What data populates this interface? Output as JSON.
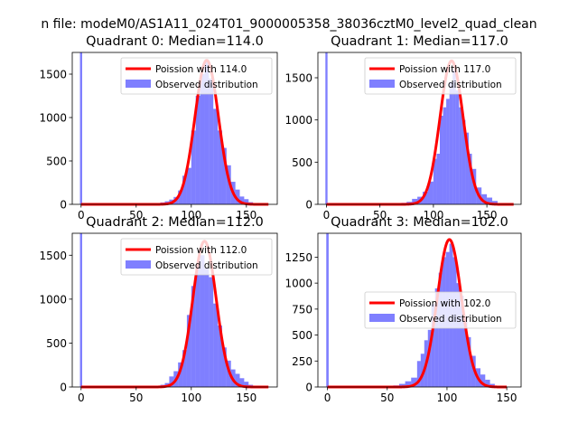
{
  "figure": {
    "suptitle": "n file: modeM0/AS1A11_024T01_9000005358_38036cztM0_level2_quad_clean"
  },
  "colors": {
    "hist": "#0000ff",
    "line": "#ff0000",
    "axis": "#000000",
    "background": "#ffffff"
  },
  "chart_data": [
    {
      "type": "bar",
      "title": "Quadrant 0: Median=114.0",
      "median": 114.0,
      "xlim": [
        -8,
        178
      ],
      "ylim": [
        0,
        1750
      ],
      "xticks": [
        0,
        50,
        100,
        150
      ],
      "yticks": [
        0,
        500,
        1000,
        1500
      ],
      "legend_position": "top-right",
      "series": [
        {
          "name": "Poission with 114.0",
          "kind": "line"
        },
        {
          "name": "Observed distribution",
          "kind": "histogram"
        }
      ],
      "spike": {
        "x": 0,
        "value": 1750
      },
      "bins": [
        [
          30,
          0,
          5
        ],
        [
          60,
          64,
          5
        ],
        [
          64,
          68,
          10
        ],
        [
          68,
          72,
          12
        ],
        [
          72,
          76,
          22
        ],
        [
          76,
          80,
          35
        ],
        [
          80,
          84,
          55
        ],
        [
          84,
          88,
          85
        ],
        [
          88,
          92,
          160
        ],
        [
          92,
          96,
          330
        ],
        [
          96,
          100,
          420
        ],
        [
          100,
          104,
          850
        ],
        [
          104,
          108,
          1250
        ],
        [
          108,
          112,
          1500
        ],
        [
          112,
          116,
          1650
        ],
        [
          116,
          120,
          1450
        ],
        [
          120,
          124,
          1100
        ],
        [
          124,
          128,
          850
        ],
        [
          128,
          132,
          650
        ],
        [
          132,
          136,
          450
        ],
        [
          136,
          140,
          260
        ],
        [
          140,
          144,
          170
        ],
        [
          144,
          148,
          90
        ],
        [
          148,
          152,
          60
        ],
        [
          152,
          156,
          25
        ],
        [
          156,
          160,
          10
        ],
        [
          160,
          170,
          5
        ]
      ],
      "curve": {
        "mean": 114.0,
        "sd": 10.68,
        "peak": 1660,
        "x_range": [
          0,
          170
        ]
      }
    },
    {
      "type": "bar",
      "title": "Quadrant 1: Median=117.0",
      "median": 117.0,
      "xlim": [
        -8,
        182
      ],
      "ylim": [
        0,
        1800
      ],
      "xticks": [
        0,
        50,
        100,
        150
      ],
      "yticks": [
        0,
        500,
        1000,
        1500
      ],
      "legend_position": "top-right",
      "series": [
        {
          "name": "Poission with 117.0",
          "kind": "line"
        },
        {
          "name": "Observed distribution",
          "kind": "histogram"
        }
      ],
      "spike": {
        "x": 0,
        "value": 1800
      },
      "bins": [
        [
          30,
          0,
          5
        ],
        [
          65,
          70,
          10
        ],
        [
          70,
          75,
          18
        ],
        [
          75,
          80,
          30
        ],
        [
          80,
          85,
          65
        ],
        [
          85,
          90,
          90
        ],
        [
          90,
          95,
          150
        ],
        [
          95,
          100,
          270
        ],
        [
          100,
          103,
          540
        ],
        [
          103,
          106,
          600
        ],
        [
          106,
          109,
          1050
        ],
        [
          109,
          112,
          1150
        ],
        [
          112,
          115,
          1250
        ],
        [
          115,
          118,
          1450
        ],
        [
          118,
          121,
          1600
        ],
        [
          121,
          124,
          1350
        ],
        [
          124,
          127,
          1150
        ],
        [
          127,
          130,
          1000
        ],
        [
          130,
          133,
          850
        ],
        [
          133,
          136,
          600
        ],
        [
          136,
          140,
          420
        ],
        [
          140,
          145,
          200
        ],
        [
          145,
          150,
          120
        ],
        [
          150,
          155,
          80
        ],
        [
          155,
          160,
          40
        ],
        [
          160,
          175,
          5
        ]
      ],
      "curve": {
        "mean": 117.0,
        "sd": 10.82,
        "peak": 1700,
        "x_range": [
          0,
          175
        ]
      }
    },
    {
      "type": "bar",
      "title": "Quadrant 2: Median=112.0",
      "median": 112.0,
      "xlim": [
        -8,
        178
      ],
      "ylim": [
        0,
        1750
      ],
      "xticks": [
        0,
        50,
        100,
        150
      ],
      "yticks": [
        0,
        500,
        1000,
        1500
      ],
      "legend_position": "top-right",
      "series": [
        {
          "name": "Poission with 112.0",
          "kind": "line"
        },
        {
          "name": "Observed distribution",
          "kind": "histogram"
        }
      ],
      "spike": {
        "x": 0,
        "value": 1750
      },
      "bins": [
        [
          30,
          0,
          5
        ],
        [
          60,
          64,
          5
        ],
        [
          64,
          68,
          10
        ],
        [
          68,
          72,
          15
        ],
        [
          72,
          76,
          25
        ],
        [
          76,
          80,
          45
        ],
        [
          80,
          84,
          120
        ],
        [
          84,
          88,
          180
        ],
        [
          88,
          92,
          280
        ],
        [
          92,
          96,
          420
        ],
        [
          96,
          100,
          820
        ],
        [
          100,
          104,
          1150
        ],
        [
          104,
          108,
          1400
        ],
        [
          108,
          112,
          1500
        ],
        [
          112,
          116,
          1350
        ],
        [
          116,
          120,
          1250
        ],
        [
          120,
          124,
          950
        ],
        [
          124,
          128,
          700
        ],
        [
          128,
          132,
          450
        ],
        [
          132,
          136,
          300
        ],
        [
          136,
          140,
          200
        ],
        [
          140,
          144,
          150
        ],
        [
          144,
          148,
          100
        ],
        [
          148,
          152,
          60
        ],
        [
          152,
          156,
          25
        ],
        [
          156,
          160,
          10
        ],
        [
          160,
          170,
          5
        ]
      ],
      "curve": {
        "mean": 112.0,
        "sd": 10.58,
        "peak": 1660,
        "x_range": [
          0,
          170
        ]
      }
    },
    {
      "type": "bar",
      "title": "Quadrant 3: Median=102.0",
      "median": 102.0,
      "xlim": [
        -8,
        162
      ],
      "ylim": [
        0,
        1480
      ],
      "xticks": [
        0,
        50,
        100,
        150
      ],
      "yticks": [
        0,
        250,
        500,
        750,
        1000,
        1250
      ],
      "legend_position": "center-right",
      "series": [
        {
          "name": "Poission with 102.0",
          "kind": "line"
        },
        {
          "name": "Observed distribution",
          "kind": "histogram"
        }
      ],
      "spike": {
        "x": 0,
        "value": 1480
      },
      "bins": [
        [
          30,
          0,
          5
        ],
        [
          45,
          50,
          5
        ],
        [
          50,
          55,
          10
        ],
        [
          55,
          60,
          15
        ],
        [
          60,
          65,
          30
        ],
        [
          65,
          70,
          55
        ],
        [
          70,
          75,
          90
        ],
        [
          75,
          78,
          250
        ],
        [
          78,
          81,
          320
        ],
        [
          81,
          84,
          450
        ],
        [
          84,
          87,
          550
        ],
        [
          87,
          90,
          800
        ],
        [
          90,
          93,
          950
        ],
        [
          93,
          96,
          1100
        ],
        [
          96,
          99,
          1250
        ],
        [
          99,
          102,
          1300
        ],
        [
          102,
          105,
          1380
        ],
        [
          105,
          108,
          1250
        ],
        [
          108,
          111,
          1000
        ],
        [
          111,
          114,
          880
        ],
        [
          114,
          117,
          680
        ],
        [
          117,
          120,
          480
        ],
        [
          120,
          124,
          300
        ],
        [
          124,
          128,
          180
        ],
        [
          128,
          132,
          120
        ],
        [
          132,
          136,
          70
        ],
        [
          136,
          140,
          30
        ],
        [
          140,
          150,
          5
        ]
      ],
      "curve": {
        "mean": 102.0,
        "sd": 10.1,
        "peak": 1420,
        "x_range": [
          0,
          150
        ]
      }
    }
  ]
}
